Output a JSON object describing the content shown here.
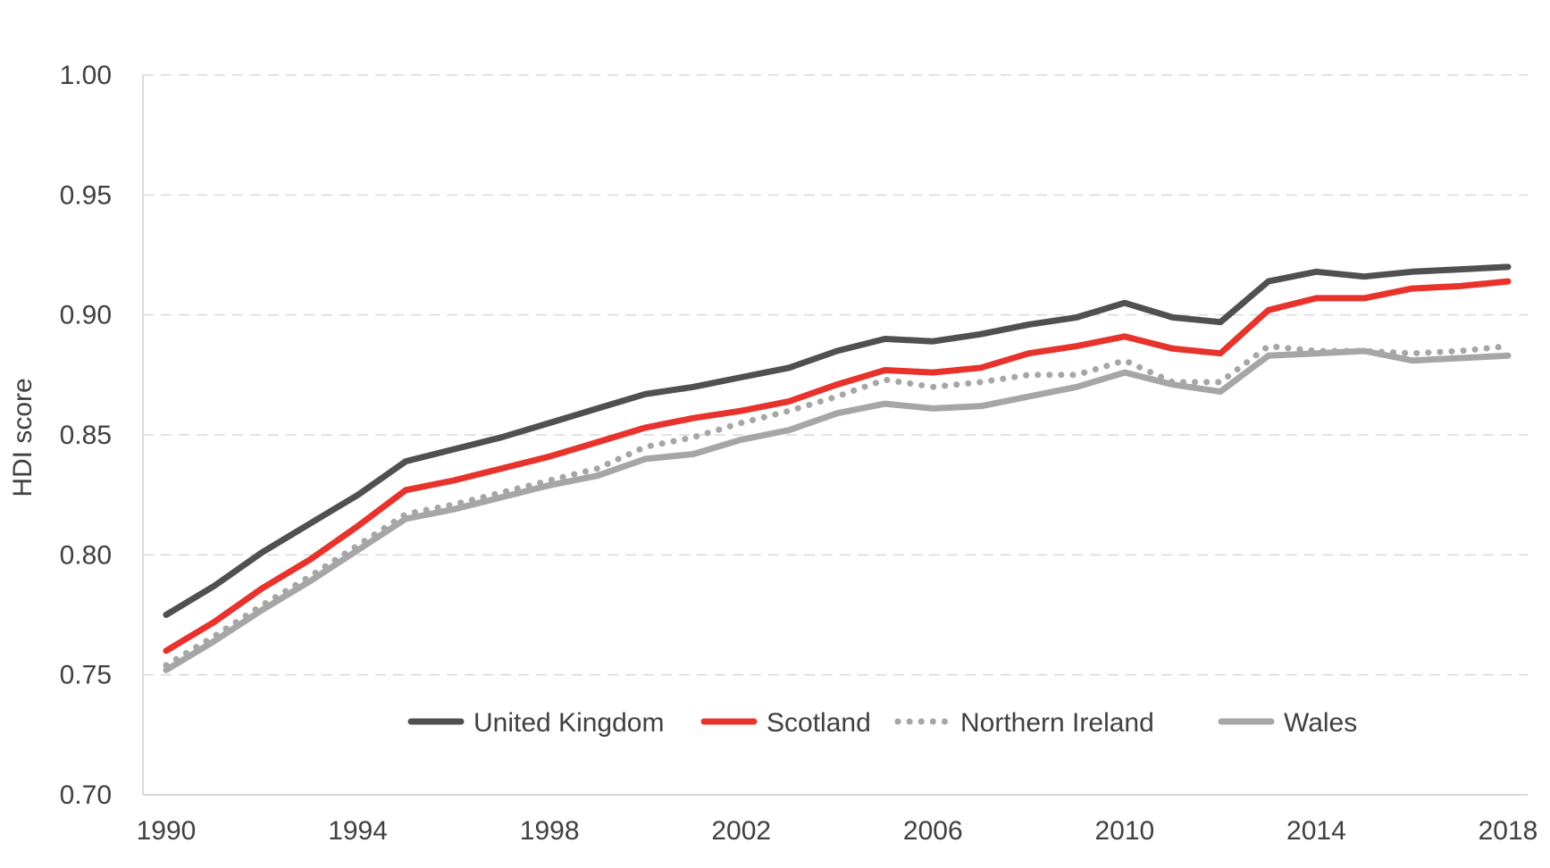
{
  "chart_data": {
    "type": "line",
    "title": "",
    "xlabel": "",
    "ylabel": "HDI score",
    "xlim": [
      1990,
      2018
    ],
    "ylim": [
      0.7,
      1.0
    ],
    "x_ticks": [
      "1990",
      "1994",
      "1998",
      "2002",
      "2006",
      "2010",
      "2014",
      "2018"
    ],
    "y_ticks": [
      "0.70",
      "0.75",
      "0.80",
      "0.85",
      "0.90",
      "0.95",
      "1.00"
    ],
    "grid": "horizontal dashed",
    "legend": "inside-bottom",
    "x": [
      1990,
      1991,
      1992,
      1993,
      1994,
      1995,
      1996,
      1997,
      1998,
      1999,
      2000,
      2001,
      2002,
      2003,
      2004,
      2005,
      2006,
      2007,
      2008,
      2009,
      2010,
      2011,
      2012,
      2013,
      2014,
      2015,
      2016,
      2017,
      2018
    ],
    "series": [
      {
        "name": "United Kingdom",
        "color": "#505050",
        "style": "solid",
        "values": [
          0.775,
          0.787,
          0.801,
          0.813,
          0.825,
          0.839,
          0.844,
          0.849,
          0.855,
          0.861,
          0.867,
          0.87,
          0.874,
          0.878,
          0.885,
          0.89,
          0.889,
          0.892,
          0.896,
          0.899,
          0.905,
          0.899,
          0.897,
          0.914,
          0.918,
          0.916,
          0.918,
          0.919,
          0.92
        ]
      },
      {
        "name": "Scotland",
        "color": "#e8322c",
        "style": "solid",
        "values": [
          0.76,
          0.772,
          0.786,
          0.798,
          0.812,
          0.827,
          0.831,
          0.836,
          0.841,
          0.847,
          0.853,
          0.857,
          0.86,
          0.864,
          0.871,
          0.877,
          0.876,
          0.878,
          0.884,
          0.887,
          0.891,
          0.886,
          0.884,
          0.902,
          0.907,
          0.907,
          0.911,
          0.912,
          0.914
        ]
      },
      {
        "name": "Northern Ireland",
        "color": "#a6a6a6",
        "style": "dotted",
        "values": [
          0.754,
          0.766,
          0.779,
          0.791,
          0.804,
          0.817,
          0.821,
          0.826,
          0.831,
          0.836,
          0.845,
          0.849,
          0.855,
          0.86,
          0.866,
          0.873,
          0.87,
          0.872,
          0.875,
          0.875,
          0.881,
          0.872,
          0.872,
          0.887,
          0.885,
          0.885,
          0.884,
          0.885,
          0.887
        ]
      },
      {
        "name": "Wales",
        "color": "#a6a6a6",
        "style": "solid",
        "values": [
          0.752,
          0.764,
          0.777,
          0.789,
          0.802,
          0.815,
          0.819,
          0.824,
          0.829,
          0.833,
          0.84,
          0.842,
          0.848,
          0.852,
          0.859,
          0.863,
          0.861,
          0.862,
          0.866,
          0.87,
          0.876,
          0.871,
          0.868,
          0.883,
          0.884,
          0.885,
          0.881,
          0.882,
          0.883
        ]
      }
    ]
  }
}
